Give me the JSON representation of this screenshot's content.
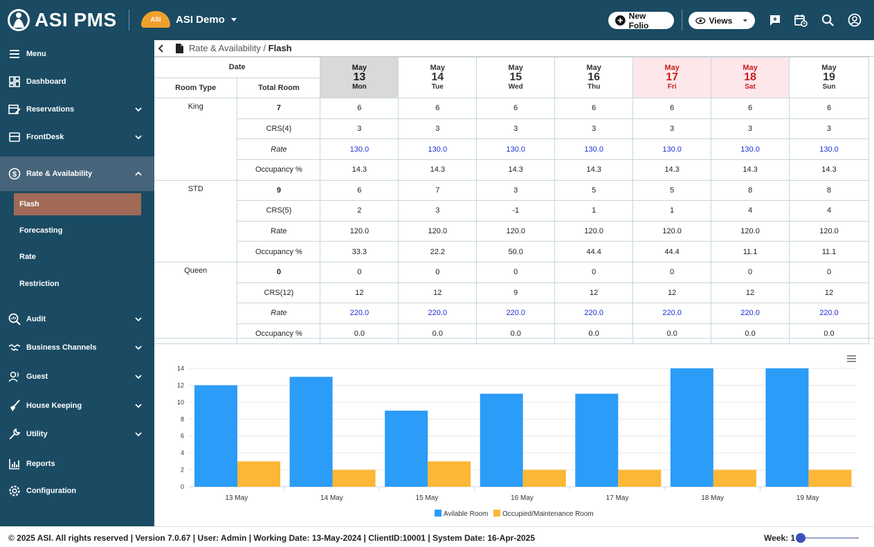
{
  "app": {
    "name": "ASI PMS",
    "property_name": "ASI Demo",
    "property_badge": "ASI",
    "new_folio_label": "New Folio",
    "views_label": "Views"
  },
  "sidebar": {
    "items": [
      {
        "label": "Menu"
      },
      {
        "label": "Dashboard"
      },
      {
        "label": "Reservations"
      },
      {
        "label": "FrontDesk"
      },
      {
        "label": "Rate & Availability"
      },
      {
        "label": "Audit"
      },
      {
        "label": "Business Channels"
      },
      {
        "label": "Guest"
      },
      {
        "label": "House Keeping"
      },
      {
        "label": "Utility"
      },
      {
        "label": "Reports"
      },
      {
        "label": "Configuration"
      }
    ],
    "subitems": [
      {
        "label": "Flash"
      },
      {
        "label": "Forecasting"
      },
      {
        "label": "Rate"
      },
      {
        "label": "Restriction"
      }
    ]
  },
  "breadcrumb": {
    "parent": "Rate & Availability",
    "separator": " / ",
    "current": "Flash"
  },
  "grid": {
    "date_label": "Date",
    "room_type_label": "Room Type",
    "total_room_label": "Total Room",
    "dates": [
      {
        "month": "May",
        "day": "13",
        "weekday": "Mon"
      },
      {
        "month": "May",
        "day": "14",
        "weekday": "Tue"
      },
      {
        "month": "May",
        "day": "15",
        "weekday": "Wed"
      },
      {
        "month": "May",
        "day": "16",
        "weekday": "Thu"
      },
      {
        "month": "May",
        "day": "17",
        "weekday": "Fri"
      },
      {
        "month": "May",
        "day": "18",
        "weekday": "Sat"
      },
      {
        "month": "May",
        "day": "19",
        "weekday": "Sun"
      }
    ],
    "room_types": [
      {
        "name": "King",
        "rows": [
          {
            "label": "7",
            "values": [
              "6",
              "6",
              "6",
              "6",
              "6",
              "6",
              "6"
            ]
          },
          {
            "label": "CRS(4)",
            "values": [
              "3",
              "3",
              "3",
              "3",
              "3",
              "3",
              "3"
            ]
          },
          {
            "label": "Rate",
            "values": [
              "130.0",
              "130.0",
              "130.0",
              "130.0",
              "130.0",
              "130.0",
              "130.0"
            ]
          },
          {
            "label": "Occupancy %",
            "values": [
              "14.3",
              "14.3",
              "14.3",
              "14.3",
              "14.3",
              "14.3",
              "14.3"
            ]
          }
        ]
      },
      {
        "name": "STD",
        "rows": [
          {
            "label": "9",
            "values": [
              "6",
              "7",
              "3",
              "5",
              "5",
              "8",
              "8"
            ]
          },
          {
            "label": "CRS(5)",
            "values": [
              "2",
              "3",
              "-1",
              "1",
              "1",
              "4",
              "4"
            ]
          },
          {
            "label": "Rate",
            "values": [
              "120.0",
              "120.0",
              "120.0",
              "120.0",
              "120.0",
              "120.0",
              "120.0"
            ]
          },
          {
            "label": "Occupancy %",
            "values": [
              "33.3",
              "22.2",
              "50.0",
              "44.4",
              "44.4",
              "11.1",
              "11.1"
            ]
          }
        ]
      },
      {
        "name": "Queen",
        "rows": [
          {
            "label": "0",
            "values": [
              "0",
              "0",
              "0",
              "0",
              "0",
              "0",
              "0"
            ]
          },
          {
            "label": "CRS(12)",
            "values": [
              "12",
              "12",
              "9",
              "12",
              "12",
              "12",
              "12"
            ]
          },
          {
            "label": "Rate",
            "values": [
              "220.0",
              "220.0",
              "220.0",
              "220.0",
              "220.0",
              "220.0",
              "220.0"
            ]
          },
          {
            "label": "Occupancy %",
            "values": [
              "0.0",
              "0.0",
              "0.0",
              "0.0",
              "0.0",
              "0.0",
              "0.0"
            ]
          }
        ]
      }
    ]
  },
  "chart_data": {
    "type": "bar",
    "categories": [
      "13 May",
      "14 May",
      "15 May",
      "16 May",
      "17 May",
      "18 May",
      "19 May"
    ],
    "series": [
      {
        "name": "Avilable Room",
        "color": "#2b9cf8",
        "values": [
          12,
          13,
          9,
          11,
          11,
          14,
          14
        ]
      },
      {
        "name": "Occupied/Maintenance Room",
        "color": "#fbb735",
        "values": [
          3,
          2,
          3,
          2,
          2,
          2,
          2
        ]
      }
    ],
    "y_ticks": [
      "0",
      "2",
      "4",
      "6",
      "8",
      "10",
      "12",
      "14"
    ],
    "ylim": [
      0,
      14
    ],
    "legend_position": "bottom-center"
  },
  "footer": {
    "text": "© 2025 ASI. All rights reserved | Version 7.0.67 | User: Admin | Working Date: 13-May-2024 | ClientID:10001 | System Date: 16-Apr-2025",
    "week_label": "Week: 1",
    "week_value": 1
  },
  "colors": {
    "sidebar_bg": "#1a4b63",
    "active_sub": "#a06a56",
    "weekend_bg": "#fde7ea",
    "weekend_text": "#c81e1e",
    "today_bg": "#d9d9d9"
  }
}
